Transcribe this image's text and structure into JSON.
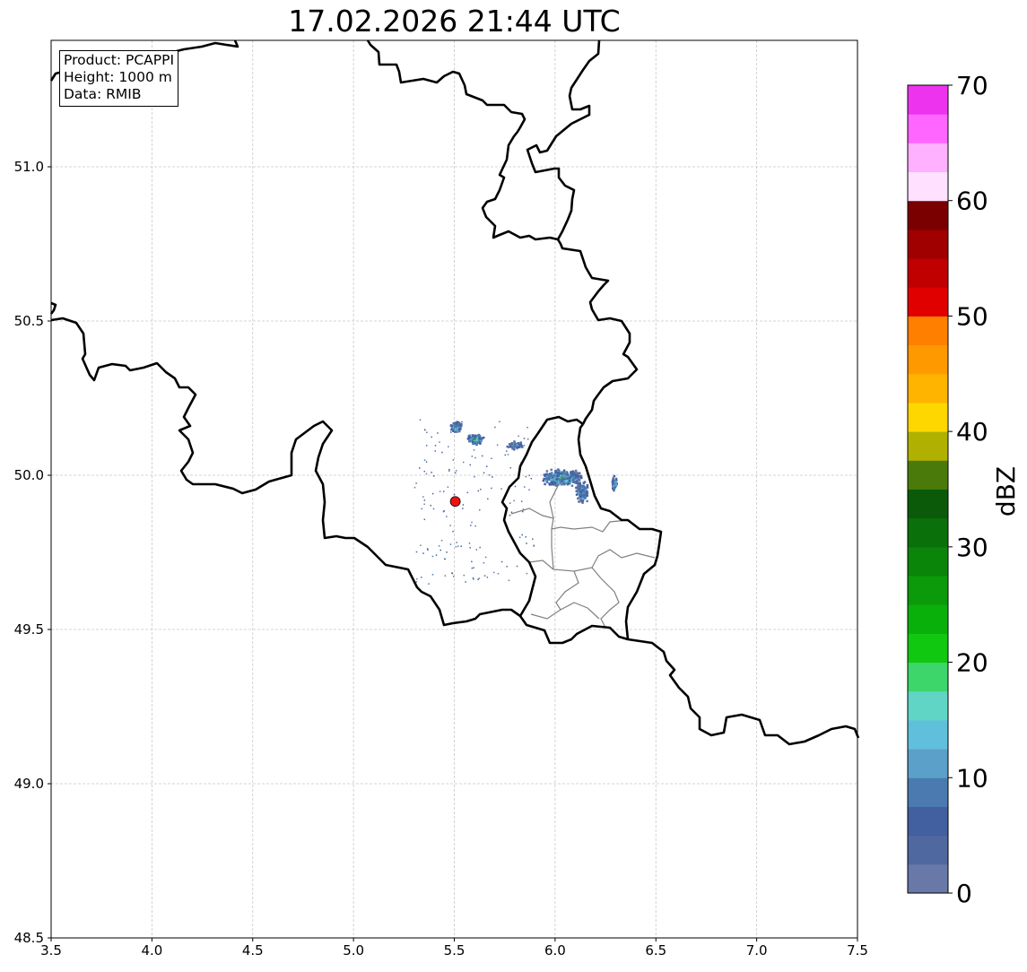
{
  "title": "17.02.2026 21:44 UTC",
  "info_box": {
    "product": "Product: PCAPPI",
    "height": "Height: 1000 m",
    "data": "Data: RMIB"
  },
  "map": {
    "lon_range": [
      3.5,
      7.5
    ],
    "lat_range": [
      48.5,
      51.4
    ],
    "lon_ticks": [
      "3.5",
      "4.0",
      "4.5",
      "5.0",
      "5.5",
      "6.0",
      "6.5",
      "7.0",
      "7.5"
    ],
    "lat_ticks": [
      "48.5",
      "49.0",
      "49.5",
      "50.0",
      "50.5",
      "51.0"
    ],
    "radar_site": {
      "lon": 5.505,
      "lat": 49.915,
      "color": "#ee1111"
    },
    "echo_clusters": [
      {
        "lon": 5.505,
        "lat": 50.16,
        "spread_lon": 0.03,
        "spread_lat": 0.02,
        "count": 90,
        "max_dbz": 20
      },
      {
        "lon": 5.6,
        "lat": 50.12,
        "spread_lon": 0.05,
        "spread_lat": 0.02,
        "count": 120,
        "max_dbz": 20
      },
      {
        "lon": 5.8,
        "lat": 50.1,
        "spread_lon": 0.05,
        "spread_lat": 0.015,
        "count": 60,
        "max_dbz": 12
      },
      {
        "lon": 6.03,
        "lat": 49.995,
        "spread_lon": 0.12,
        "spread_lat": 0.03,
        "count": 520,
        "max_dbz": 22
      },
      {
        "lon": 6.13,
        "lat": 49.95,
        "spread_lon": 0.04,
        "spread_lat": 0.04,
        "count": 160,
        "max_dbz": 12
      },
      {
        "lon": 6.29,
        "lat": 49.975,
        "spread_lon": 0.015,
        "spread_lat": 0.03,
        "count": 50,
        "max_dbz": 20
      }
    ]
  },
  "colorbar": {
    "label": "dBZ",
    "min": 0,
    "max": 70,
    "step": 2.5,
    "ticks": [
      "0",
      "10",
      "20",
      "30",
      "40",
      "50",
      "60",
      "70"
    ],
    "colors": [
      "#6878a8",
      "#5068a0",
      "#4260a0",
      "#4a7ab0",
      "#5aa0c8",
      "#60c0dc",
      "#60d5c5",
      "#3dd66b",
      "#10c810",
      "#0ab00a",
      "#0a9a0a",
      "#0a850a",
      "#0a700a",
      "#0a5a0a",
      "#4a7a0a",
      "#b0b000",
      "#ffd700",
      "#ffb400",
      "#ff9900",
      "#ff7f00",
      "#e00000",
      "#c00000",
      "#a00000",
      "#7a0000",
      "#ffe0ff",
      "#ffb0ff",
      "#ff66ff",
      "#ee33ee"
    ]
  }
}
